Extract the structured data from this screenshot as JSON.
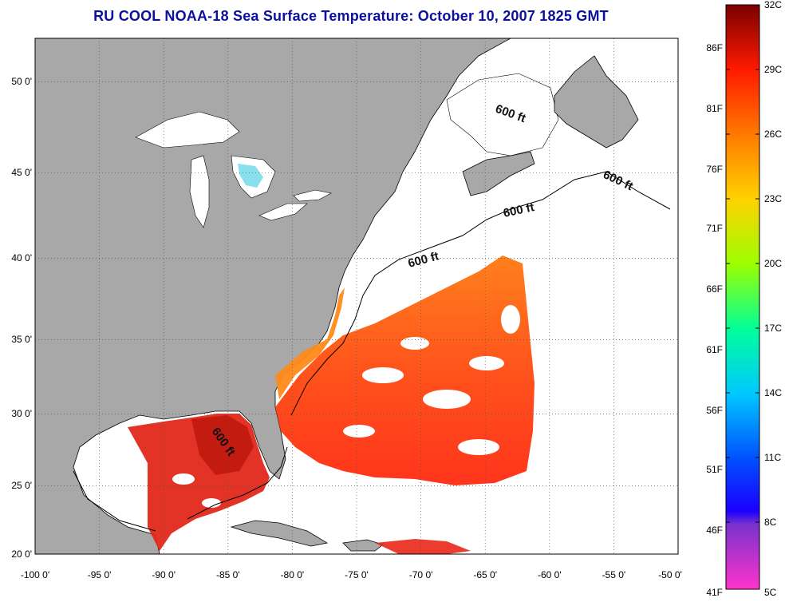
{
  "title": "RU COOL  NOAA-18  Sea Surface Temperature:  October 10, 2007 1825 GMT",
  "map": {
    "lon_range": [
      -100,
      -50
    ],
    "lat_range": [
      20,
      52
    ],
    "lon_ticks": [
      "-100 0'",
      "-95 0'",
      "-90 0'",
      "-85 0'",
      "-80 0'",
      "-75 0'",
      "-70 0'",
      "-65 0'",
      "-60 0'",
      "-55 0'",
      "-50 0'"
    ],
    "lat_ticks": [
      "20 0'",
      "25 0'",
      "30 0'",
      "35 0'",
      "40 0'",
      "45 0'",
      "50 0'"
    ],
    "grid": "dotted",
    "land_color": "#a8a8a8",
    "no_data_color": "#ffffff",
    "isobath_labels": [
      "600 ft",
      "600 ft",
      "600 ft",
      "600 ft",
      "600 ft"
    ]
  },
  "colorbar": {
    "min_c": 5,
    "max_c": 32,
    "celsius_labels": [
      "32C",
      "29C",
      "26C",
      "23C",
      "20C",
      "17C",
      "14C",
      "11C",
      "8C",
      "5C"
    ],
    "fahrenheit_labels": [
      "86F",
      "81F",
      "76F",
      "71F",
      "66F",
      "61F",
      "56F",
      "51F",
      "46F",
      "41F"
    ],
    "colors": {
      "c32": "#7a0000",
      "c29": "#ff1a00",
      "c26": "#ff7a00",
      "c23": "#ffd200",
      "c20": "#9cff00",
      "c17": "#00ff9a",
      "c14": "#00c8ff",
      "c11": "#0050ff",
      "c8": "#1a00ff",
      "c5": "#ff33cc"
    }
  }
}
